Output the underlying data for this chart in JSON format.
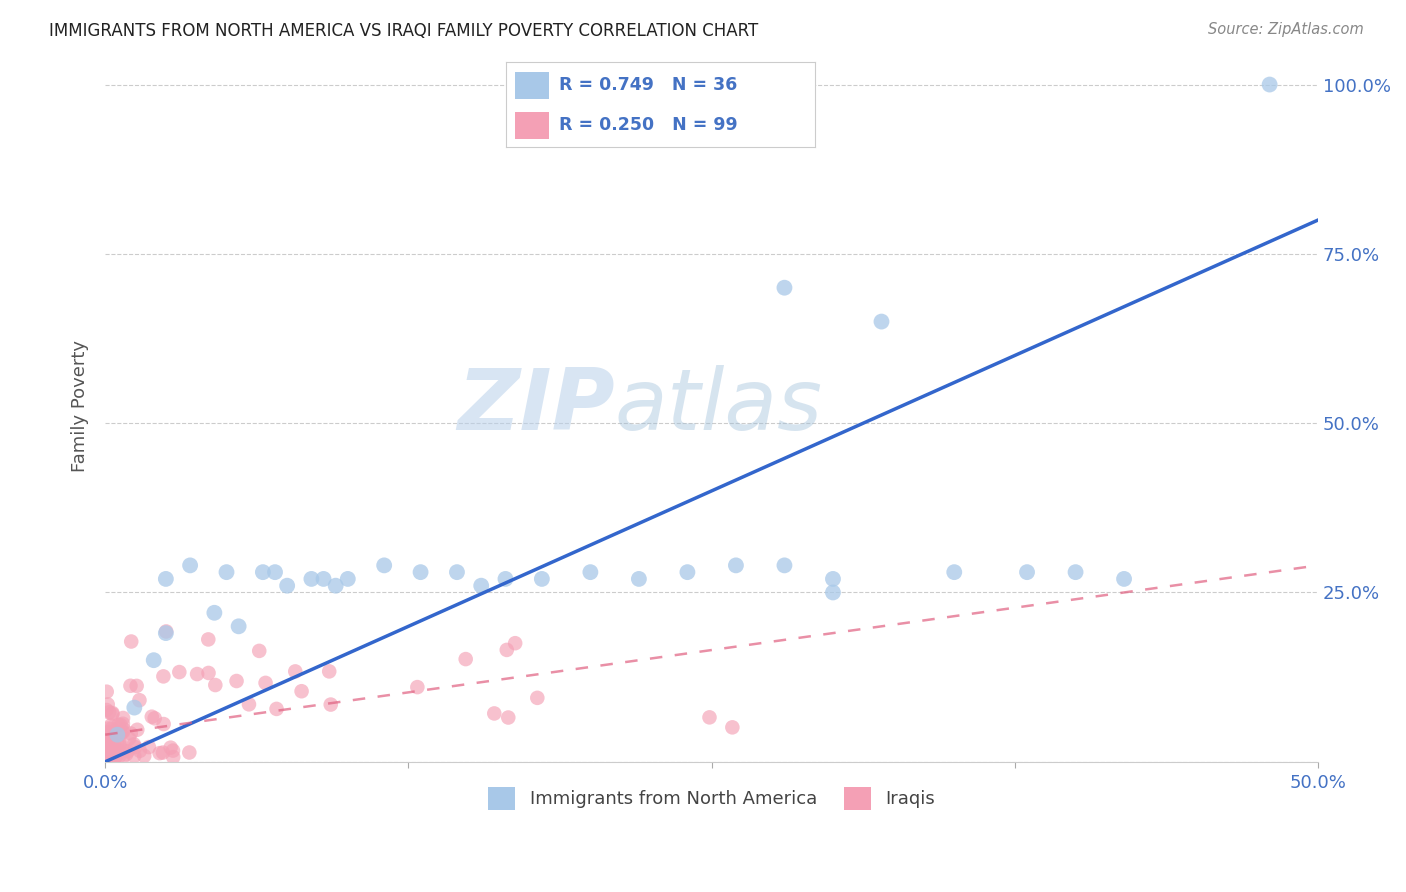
{
  "title": "IMMIGRANTS FROM NORTH AMERICA VS IRAQI FAMILY POVERTY CORRELATION CHART",
  "source": "Source: ZipAtlas.com",
  "ylabel": "Family Poverty",
  "xlim": [
    0.0,
    0.5
  ],
  "ylim": [
    0.0,
    1.05
  ],
  "blue_color": "#a8c8e8",
  "blue_line_color": "#3366cc",
  "pink_color": "#f4a0b5",
  "pink_line_color": "#e06080",
  "watermark_zip": "ZIP",
  "watermark_atlas": "atlas",
  "legend_blue_text": "R = 0.749   N = 36",
  "legend_pink_text": "R = 0.250   N = 99",
  "blue_label": "Immigrants from North America",
  "pink_label": "Iraqis",
  "blue_line_x0": 0.0,
  "blue_line_y0": 0.0,
  "blue_line_x1": 0.5,
  "blue_line_y1": 0.8,
  "pink_line_x0": 0.0,
  "pink_line_y0": 0.04,
  "pink_line_x1": 0.28,
  "pink_line_y1": 0.18,
  "blue_pts_x": [
    0.005,
    0.012,
    0.02,
    0.025,
    0.035,
    0.045,
    0.055,
    0.065,
    0.075,
    0.085,
    0.095,
    0.1,
    0.115,
    0.13,
    0.145,
    0.155,
    0.165,
    0.18,
    0.2,
    0.22,
    0.24,
    0.26,
    0.28,
    0.3,
    0.32,
    0.38,
    0.4,
    0.42,
    0.025,
    0.05,
    0.07,
    0.09,
    0.28,
    0.3,
    0.35,
    0.48
  ],
  "blue_pts_y": [
    0.04,
    0.08,
    0.15,
    0.19,
    0.29,
    0.22,
    0.2,
    0.28,
    0.26,
    0.27,
    0.26,
    0.27,
    0.29,
    0.28,
    0.28,
    0.26,
    0.27,
    0.27,
    0.28,
    0.27,
    0.28,
    0.29,
    0.29,
    0.27,
    0.65,
    0.28,
    0.28,
    0.27,
    0.27,
    0.28,
    0.28,
    0.27,
    0.7,
    0.25,
    0.28,
    1.0
  ],
  "pink_dense_seed": 42,
  "pink_spread_seed": 7
}
